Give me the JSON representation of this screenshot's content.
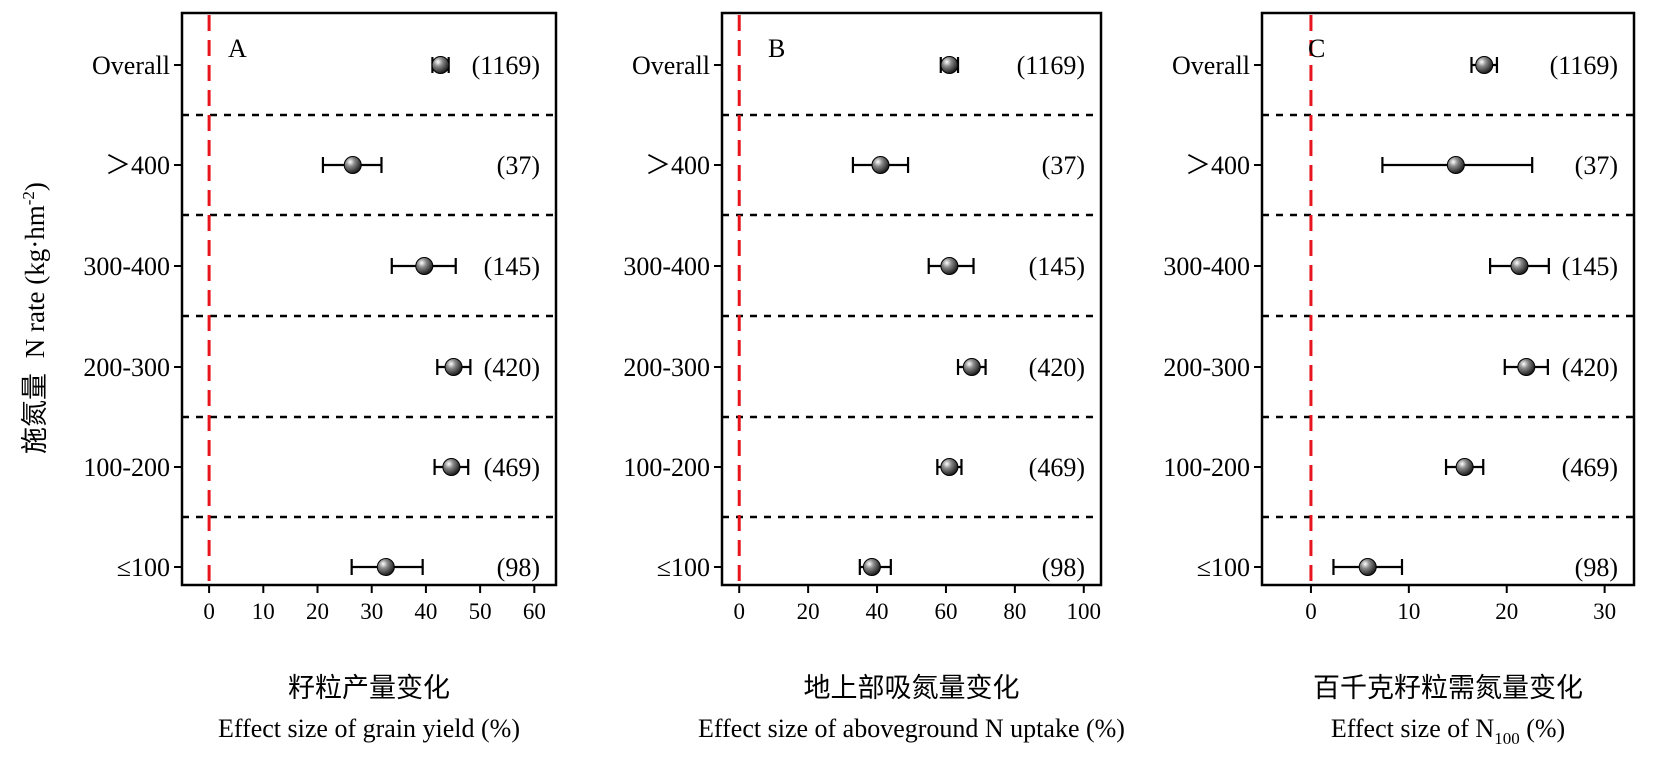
{
  "shared": {
    "y_axis_label_cn": "施氮量",
    "y_axis_label_en": "N rate (kg·hm⁻²)",
    "categories": [
      "Overall",
      "＞400",
      "300-400",
      "200-300",
      "100-200",
      "≤100"
    ],
    "sample_sizes": [
      "(1169)",
      "(37)",
      "(145)",
      "(420)",
      "(469)",
      "(98)"
    ]
  },
  "chart_data": [
    {
      "type": "scatter",
      "panel": "A",
      "xlabel_cn": "籽粒产量变化",
      "xlabel_en": "Effect size of grain yield (%)",
      "xlim": [
        -5,
        64
      ],
      "ticks": [
        0,
        10,
        20,
        30,
        40,
        50,
        60
      ],
      "points": [
        {
          "category": "Overall",
          "mean": 42.7,
          "lower": 41.2,
          "upper": 44.2,
          "n": "(1169)"
        },
        {
          "category": "＞400",
          "mean": 26.5,
          "lower": 21.0,
          "upper": 31.8,
          "n": "(37)"
        },
        {
          "category": "300-400",
          "mean": 39.7,
          "lower": 33.7,
          "upper": 45.5,
          "n": "(145)"
        },
        {
          "category": "200-300",
          "mean": 45.1,
          "lower": 42.1,
          "upper": 48.2,
          "n": "(420)"
        },
        {
          "category": "100-200",
          "mean": 44.7,
          "lower": 41.6,
          "upper": 47.8,
          "n": "(469)"
        },
        {
          "category": "≤100",
          "mean": 32.6,
          "lower": 26.3,
          "upper": 39.4,
          "n": "(98)"
        }
      ]
    },
    {
      "type": "scatter",
      "panel": "B",
      "xlabel_cn": "地上部吸氮量变化",
      "xlabel_en": "Effect size of aboveground N uptake (%)",
      "xlim": [
        -5,
        105
      ],
      "ticks": [
        0,
        20,
        40,
        60,
        80,
        100
      ],
      "points": [
        {
          "category": "Overall",
          "mean": 61.0,
          "lower": 58.5,
          "upper": 63.5,
          "n": "(1169)"
        },
        {
          "category": "＞400",
          "mean": 41.0,
          "lower": 33.0,
          "upper": 49.0,
          "n": "(37)"
        },
        {
          "category": "300-400",
          "mean": 61.0,
          "lower": 55.0,
          "upper": 68.0,
          "n": "(145)"
        },
        {
          "category": "200-300",
          "mean": 67.5,
          "lower": 63.5,
          "upper": 71.5,
          "n": "(420)"
        },
        {
          "category": "100-200",
          "mean": 61.0,
          "lower": 57.5,
          "upper": 64.5,
          "n": "(469)"
        },
        {
          "category": "≤100",
          "mean": 38.5,
          "lower": 35.0,
          "upper": 44.0,
          "n": "(98)"
        }
      ]
    },
    {
      "type": "scatter",
      "panel": "C",
      "xlabel_cn": "百千克籽粒需氮量变化",
      "xlabel_en_prefix": "Effect size of N",
      "xlabel_en_sub": "100",
      "xlabel_en_suffix": " (%)",
      "xlim": [
        -5,
        33
      ],
      "ticks": [
        0,
        10,
        20,
        30
      ],
      "points": [
        {
          "category": "Overall",
          "mean": 17.7,
          "lower": 16.4,
          "upper": 19.0,
          "n": "(1169)"
        },
        {
          "category": "＞400",
          "mean": 14.8,
          "lower": 7.3,
          "upper": 22.6,
          "n": "(37)"
        },
        {
          "category": "300-400",
          "mean": 21.3,
          "lower": 18.3,
          "upper": 24.3,
          "n": "(145)"
        },
        {
          "category": "200-300",
          "mean": 22.0,
          "lower": 19.8,
          "upper": 24.2,
          "n": "(420)"
        },
        {
          "category": "100-200",
          "mean": 15.7,
          "lower": 13.8,
          "upper": 17.6,
          "n": "(469)"
        },
        {
          "category": "≤100",
          "mean": 5.8,
          "lower": 2.3,
          "upper": 9.3,
          "n": "(98)"
        }
      ]
    }
  ],
  "colors": {
    "zero_line": "#e8141b",
    "axis": "#000000"
  }
}
